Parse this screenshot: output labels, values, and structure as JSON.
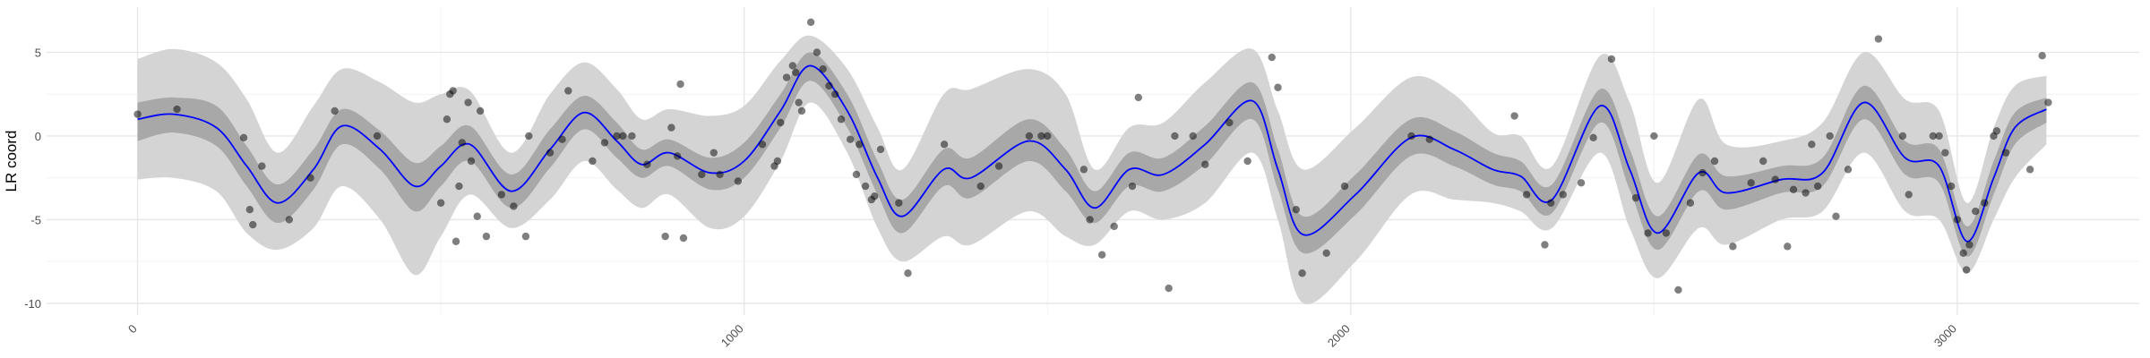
{
  "chart_data": {
    "type": "scatter",
    "y_label": "LR coord",
    "xlim": [
      -150,
      3300
    ],
    "ylim": [
      -10.7,
      7.7
    ],
    "xticks": [
      0,
      1000,
      2000,
      3000
    ],
    "yticks": [
      -10,
      -5,
      0,
      5
    ],
    "minor_xticks": [
      500,
      1500,
      2500
    ],
    "minor_yticks": [
      -7.5,
      -2.5,
      2.5
    ],
    "grid": true,
    "bands": [
      {
        "color": "#d4d4d4",
        "lower": [
          -2.6,
          -2.5,
          -3.3,
          -5.8,
          -6.8,
          -5.5,
          -3.0,
          -5.0,
          -8.3,
          -6.0,
          -3.5,
          -5.5,
          -3.8,
          -1.5,
          -3.2,
          -4.3,
          -3.5,
          -5.5,
          -4.8,
          -1.5,
          2.0,
          -1.0,
          -5.5,
          -7.5,
          -6.0,
          -6.5,
          -4.5,
          -6.0,
          -6.5,
          -4.5,
          -5.0,
          -4.0,
          -1.0,
          -5.0,
          -10.0,
          -7.5,
          -3.5,
          -3.8,
          -4.0,
          -4.5,
          -5.5,
          -1.0,
          -5.5,
          -8.5,
          -5.5,
          -6.5,
          -5.0,
          -4.5,
          -1.0,
          -4.5,
          -5.0,
          -8.2,
          -5.0,
          -2.5,
          -0.5
        ],
        "upper": [
          4.6,
          5.2,
          4.4,
          2.2,
          -1.0,
          1.8,
          4.0,
          3.2,
          2.0,
          2.5,
          2.7,
          -1.0,
          2.5,
          4.4,
          2.8,
          1.0,
          1.6,
          1.2,
          1.8,
          4.5,
          6.0,
          4.0,
          0.5,
          -2.0,
          2.5,
          2.8,
          4.0,
          2.5,
          -2.0,
          0.5,
          0.8,
          3.2,
          5.2,
          1.5,
          -2.0,
          0.5,
          3.5,
          2.5,
          0.2,
          0.0,
          -1.8,
          4.8,
          2.0,
          -2.8,
          2.2,
          -0.5,
          -0.3,
          0.8,
          5.0,
          2.2,
          1.5,
          -4.0,
          0.5,
          3.0,
          3.6
        ]
      },
      {
        "color": "#a8a8a8",
        "lower": [
          -0.3,
          0.2,
          -0.6,
          -3.0,
          -5.2,
          -3.2,
          -0.5,
          -2.0,
          -4.5,
          -3.0,
          -1.5,
          -4.3,
          -1.9,
          0.4,
          -1.3,
          -2.5,
          -1.8,
          -3.2,
          -2.5,
          0.5,
          3.3,
          0.5,
          -3.5,
          -5.8,
          -3.0,
          -3.7,
          -1.5,
          -3.3,
          -5.2,
          -3.0,
          -3.3,
          -1.7,
          1.0,
          -3.2,
          -7.0,
          -4.7,
          -1.2,
          -1.8,
          -2.9,
          -3.3,
          -4.6,
          0.8,
          -3.2,
          -6.8,
          -3.3,
          -4.4,
          -3.4,
          -3.0,
          1.0,
          -2.3,
          -2.8,
          -7.2,
          -3.5,
          -0.5,
          0.8
        ],
        "upper": [
          2.0,
          2.3,
          1.8,
          -0.6,
          -2.9,
          -0.8,
          1.6,
          0.3,
          -1.6,
          -0.6,
          0.6,
          -2.3,
          0.4,
          2.4,
          0.8,
          -0.8,
          -0.2,
          -1.3,
          -0.4,
          2.5,
          5.0,
          2.5,
          -1.5,
          -3.8,
          -0.8,
          -1.3,
          1.0,
          -0.8,
          -3.3,
          -1.0,
          -1.3,
          0.6,
          3.2,
          -0.8,
          -4.8,
          -2.3,
          1.0,
          0.3,
          -1.0,
          -1.5,
          -2.9,
          2.8,
          -0.8,
          -4.8,
          -1.1,
          -2.4,
          -1.8,
          -1.3,
          3.0,
          -0.3,
          -0.8,
          -5.4,
          -1.5,
          1.4,
          2.3
        ]
      }
    ],
    "fit": {
      "color": "#0000ff",
      "x": [
        0,
        60,
        130,
        180,
        231,
        290,
        337,
        400,
        457,
        500,
        548,
        616,
        680,
        736,
        790,
        831,
        876,
        944,
        1000,
        1060,
        1109,
        1170,
        1220,
        1261,
        1329,
        1374,
        1469,
        1530,
        1578,
        1635,
        1691,
        1760,
        1838,
        1880,
        1922,
        2008,
        2099,
        2170,
        2234,
        2280,
        2332,
        2411,
        2460,
        2506,
        2574,
        2619,
        2710,
        2778,
        2846,
        2914,
        2970,
        3016,
        3060,
        3095,
        3147
      ],
      "values": [
        1.0,
        1.3,
        0.5,
        -1.8,
        -4.0,
        -2.0,
        0.6,
        -0.8,
        -3.0,
        -1.8,
        -0.5,
        -3.3,
        -0.8,
        1.4,
        -0.3,
        -1.7,
        -1.0,
        -2.2,
        -1.5,
        1.5,
        4.2,
        1.5,
        -2.5,
        -4.8,
        -2.0,
        -2.5,
        -0.3,
        -2.0,
        -4.3,
        -2.0,
        -2.3,
        -0.5,
        2.1,
        -2.0,
        -5.9,
        -3.5,
        -0.1,
        -0.8,
        -2.0,
        -2.4,
        -3.8,
        1.8,
        -2.0,
        -5.8,
        -2.2,
        -3.4,
        -2.6,
        -2.2,
        2.0,
        -1.3,
        -1.8,
        -6.3,
        -2.5,
        0.5,
        1.6
      ]
    },
    "points": {
      "color": "#000000",
      "x": [
        0,
        65,
        175,
        185,
        190,
        205,
        250,
        285,
        325,
        395,
        500,
        510,
        515,
        520,
        525,
        530,
        535,
        545,
        550,
        560,
        565,
        575,
        600,
        620,
        640,
        645,
        680,
        700,
        710,
        750,
        770,
        790,
        800,
        815,
        840,
        870,
        880,
        890,
        895,
        900,
        930,
        950,
        960,
        990,
        1030,
        1050,
        1055,
        1060,
        1070,
        1080,
        1085,
        1090,
        1095,
        1110,
        1120,
        1130,
        1140,
        1150,
        1160,
        1175,
        1185,
        1190,
        1200,
        1210,
        1215,
        1225,
        1255,
        1270,
        1330,
        1390,
        1420,
        1470,
        1490,
        1500,
        1560,
        1570,
        1590,
        1610,
        1640,
        1650,
        1700,
        1710,
        1740,
        1760,
        1800,
        1830,
        1870,
        1880,
        1910,
        1920,
        1960,
        1990,
        2100,
        2130,
        2270,
        2290,
        2320,
        2330,
        2350,
        2380,
        2400,
        2430,
        2470,
        2490,
        2500,
        2520,
        2540,
        2560,
        2580,
        2600,
        2630,
        2660,
        2680,
        2700,
        2720,
        2730,
        2750,
        2760,
        2770,
        2790,
        2800,
        2820,
        2870,
        2910,
        2920,
        2960,
        2970,
        2980,
        2990,
        3000,
        3010,
        3015,
        3020,
        3030,
        3045,
        3060,
        3065,
        3080,
        3120,
        3140,
        3150
      ],
      "y": [
        1.3,
        1.6,
        -0.1,
        -4.4,
        -5.3,
        -1.8,
        -5.0,
        -2.5,
        1.5,
        0,
        -4.0,
        1.0,
        2.5,
        2.7,
        -6.3,
        -3.0,
        -0.4,
        2.0,
        -1.5,
        -4.8,
        1.5,
        -6.0,
        -3.5,
        -4.2,
        -6.0,
        0,
        -1.0,
        -0.2,
        2.7,
        -1.5,
        -0.4,
        0,
        0,
        0,
        -1.7,
        -6.0,
        0.5,
        -1.2,
        3.1,
        -6.1,
        -2.3,
        -1.0,
        -2.3,
        -2.7,
        -0.5,
        -1.8,
        -1.5,
        0.8,
        3.5,
        4.2,
        3.8,
        2.0,
        1.5,
        6.8,
        5.0,
        4.0,
        3.0,
        2.5,
        1.0,
        -0.2,
        -2.3,
        -0.5,
        -3.0,
        -3.8,
        -3.6,
        -0.8,
        -4.0,
        -8.2,
        -0.5,
        -3.0,
        -1.8,
        0,
        0,
        0,
        -2.0,
        -5.0,
        -7.1,
        -5.4,
        -3.0,
        2.3,
        -9.1,
        0,
        0,
        -1.7,
        0.8,
        -1.5,
        4.7,
        2.9,
        -4.4,
        -8.2,
        -7.0,
        -3.0,
        0,
        -0.2,
        1.2,
        -3.5,
        -6.5,
        -4.0,
        -3.5,
        -2.8,
        -0.1,
        4.6,
        -3.7,
        -5.8,
        0,
        -5.8,
        -9.2,
        -4.0,
        -2.2,
        -1.5,
        -6.6,
        -2.8,
        -1.5,
        -2.6,
        -6.6,
        -3.2,
        -3.4,
        -0.5,
        -3.0,
        0,
        -4.8,
        -2.0,
        5.8,
        0,
        -3.5,
        0,
        0,
        -1.0,
        -3.0,
        -5.0,
        -7.0,
        -8.0,
        -6.5,
        -4.5,
        -4.0,
        0,
        0.3,
        -1.0,
        -2.0,
        4.8,
        2.0
      ]
    }
  }
}
